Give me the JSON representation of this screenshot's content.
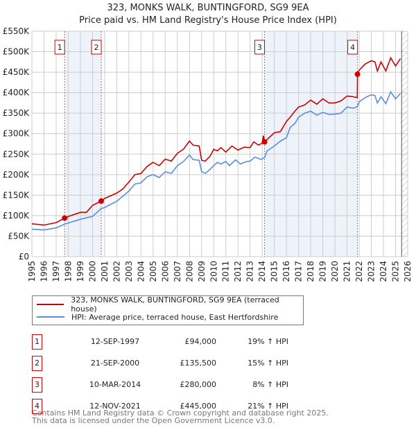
{
  "chart_data": {
    "type": "line",
    "title": "323, MONKS WALK, BUNTINGFORD, SG9 9EA",
    "subtitle": "Price paid vs. HM Land Registry's House Price Index (HPI)",
    "xlim": [
      1995,
      2026
    ],
    "ylim": [
      0,
      550000
    ],
    "y_ticks": [
      {
        "v": 0,
        "label": "£0"
      },
      {
        "v": 50000,
        "label": "£50K"
      },
      {
        "v": 100000,
        "label": "£100K"
      },
      {
        "v": 150000,
        "label": "£150K"
      },
      {
        "v": 200000,
        "label": "£200K"
      },
      {
        "v": 250000,
        "label": "£250K"
      },
      {
        "v": 300000,
        "label": "£300K"
      },
      {
        "v": 350000,
        "label": "£350K"
      },
      {
        "v": 400000,
        "label": "£400K"
      },
      {
        "v": 450000,
        "label": "£450K"
      },
      {
        "v": 500000,
        "label": "£500K"
      },
      {
        "v": 550000,
        "label": "£550K"
      }
    ],
    "x_ticks": [
      "1995",
      "1996",
      "1997",
      "1998",
      "1999",
      "2000",
      "2001",
      "2002",
      "2003",
      "2004",
      "2005",
      "2006",
      "2007",
      "2008",
      "2009",
      "2010",
      "2011",
      "2012",
      "2013",
      "2014",
      "2015",
      "2016",
      "2017",
      "2018",
      "2019",
      "2020",
      "2021",
      "2022",
      "2023",
      "2024",
      "2025",
      "2026"
    ],
    "grid": true,
    "series": [
      {
        "name": "323, MONKS WALK, BUNTINGFORD, SG9 9EA (terraced house)",
        "color": "#cc0000",
        "x": [
          1995,
          1996,
          1997,
          1997.7,
          1998,
          1999,
          1999.5,
          2000,
          2000.72,
          2001,
          2002,
          2002.5,
          2003,
          2003.5,
          2004,
          2004.5,
          2005,
          2005.5,
          2006,
          2006.5,
          2007,
          2007.5,
          2008,
          2008.3,
          2008.8,
          2009,
          2009.3,
          2009.7,
          2010,
          2010.3,
          2010.6,
          2011,
          2011.5,
          2012,
          2012.5,
          2013,
          2013.3,
          2013.7,
          2014,
          2014.1,
          2014.19,
          2015,
          2015.5,
          2016,
          2016.3,
          2016.7,
          2017,
          2017.5,
          2018,
          2018.5,
          2019,
          2019.5,
          2020,
          2020.5,
          2021,
          2021.5,
          2021.84,
          2021.86,
          2022,
          2022.5,
          2023,
          2023.3,
          2023.5,
          2023.8,
          2024.2,
          2024.6,
          2025,
          2025.4
        ],
        "y": [
          80000,
          77000,
          83000,
          94000,
          98000,
          108000,
          108000,
          125000,
          135500,
          142000,
          155000,
          165000,
          182000,
          200000,
          203000,
          220000,
          230000,
          222000,
          238000,
          233000,
          252000,
          262000,
          282000,
          272000,
          270000,
          235000,
          233000,
          245000,
          262000,
          258000,
          266000,
          255000,
          270000,
          260000,
          267000,
          266000,
          280000,
          272000,
          277000,
          295000,
          280000,
          302000,
          305000,
          330000,
          340000,
          355000,
          365000,
          370000,
          382000,
          372000,
          385000,
          375000,
          375000,
          380000,
          392000,
          390000,
          388000,
          445000,
          455000,
          470000,
          478000,
          475000,
          453000,
          475000,
          453000,
          485000,
          465000,
          483000
        ]
      },
      {
        "name": "HPI: Average price, terraced house, East Hertfordshire",
        "color": "#5b8ed6",
        "x": [
          1995,
          1996,
          1997,
          1997.7,
          1998,
          1999,
          2000,
          2000.7,
          2001,
          2002,
          2003,
          2003.5,
          2004,
          2004.5,
          2005,
          2005.5,
          2006,
          2006.5,
          2007,
          2007.5,
          2008,
          2008.3,
          2008.8,
          2009,
          2009.3,
          2009.7,
          2010,
          2010.3,
          2010.6,
          2011,
          2011.3,
          2011.8,
          2012.2,
          2012.7,
          2013,
          2013.4,
          2013.9,
          2014.2,
          2014.4,
          2015,
          2015.5,
          2016,
          2016.3,
          2016.7,
          2017,
          2017.5,
          2018,
          2018.5,
          2019,
          2019.5,
          2020,
          2020.5,
          2021,
          2021.5,
          2021.85,
          2022,
          2022.5,
          2023,
          2023.3,
          2023.5,
          2023.8,
          2024.2,
          2024.6,
          2025,
          2025.4
        ],
        "y": [
          67000,
          65000,
          70000,
          79000,
          82000,
          91000,
          98000,
          117000,
          120000,
          135000,
          160000,
          177000,
          180000,
          195000,
          200000,
          193000,
          207000,
          203000,
          222000,
          232000,
          248000,
          237000,
          235000,
          207000,
          203000,
          213000,
          222000,
          230000,
          226000,
          232000,
          222000,
          236000,
          226000,
          232000,
          233000,
          243000,
          237000,
          242000,
          258000,
          270000,
          282000,
          290000,
          315000,
          325000,
          340000,
          350000,
          355000,
          345000,
          352000,
          347000,
          348000,
          350000,
          365000,
          362000,
          366000,
          378000,
          388000,
          395000,
          393000,
          375000,
          390000,
          373000,
          402000,
          385000,
          398000
        ]
      }
    ],
    "sales": [
      {
        "label": "1",
        "x": 1997.7,
        "y": 94000,
        "date": "12-SEP-1997",
        "price": "£94,000",
        "hpi": "19% ↑ HPI"
      },
      {
        "label": "2",
        "x": 2000.72,
        "y": 135500,
        "date": "21-SEP-2000",
        "price": "£135,500",
        "hpi": "15% ↑ HPI"
      },
      {
        "label": "3",
        "x": 2014.19,
        "y": 280000,
        "date": "10-MAR-2014",
        "price": "£280,000",
        "hpi": "8% ↑ HPI"
      },
      {
        "label": "4",
        "x": 2021.86,
        "y": 445000,
        "date": "12-NOV-2021",
        "price": "£445,000",
        "hpi": "21% ↑ HPI"
      }
    ],
    "forecast_start": 2025.5
  },
  "footer": {
    "line1": "Contains HM Land Registry data © Crown copyright and database right 2025.",
    "line2": "This data is licensed under the Open Government Licence v3.0."
  }
}
